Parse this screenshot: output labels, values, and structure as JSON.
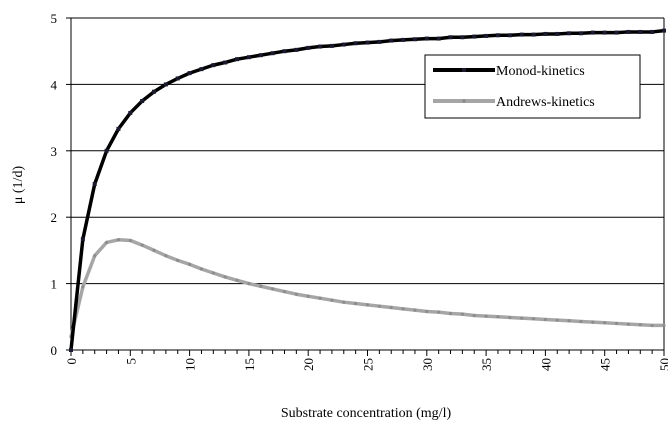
{
  "chart_data": {
    "type": "line",
    "title": "",
    "xlabel": "Substrate concentration  (mg/l)",
    "ylabel": "μ (1/d)",
    "xlim": [
      0,
      50
    ],
    "ylim": [
      0,
      5
    ],
    "x_ticks": [
      "0",
      "5",
      "10",
      "15",
      "20",
      "25",
      "30",
      "35",
      "40",
      "45",
      "50"
    ],
    "y_ticks": [
      "0",
      "1",
      "2",
      "3",
      "4",
      "5"
    ],
    "grid": "horizontal",
    "legend_position": "upper-right",
    "x": [
      0,
      1,
      2,
      3,
      4,
      5,
      6,
      7,
      8,
      9,
      10,
      11,
      12,
      13,
      14,
      15,
      16,
      17,
      18,
      19,
      20,
      21,
      22,
      23,
      24,
      25,
      26,
      27,
      28,
      29,
      30,
      31,
      32,
      33,
      34,
      35,
      36,
      37,
      38,
      39,
      40,
      41,
      42,
      43,
      44,
      45,
      46,
      47,
      48,
      49,
      50
    ],
    "series": [
      {
        "name": "Monod-kinetics",
        "color": "#000000",
        "values": [
          0.0,
          1.67,
          2.5,
          3.0,
          3.33,
          3.57,
          3.75,
          3.89,
          4.0,
          4.09,
          4.17,
          4.23,
          4.29,
          4.33,
          4.38,
          4.41,
          4.44,
          4.47,
          4.5,
          4.52,
          4.55,
          4.57,
          4.58,
          4.6,
          4.62,
          4.63,
          4.64,
          4.66,
          4.67,
          4.68,
          4.69,
          4.69,
          4.71,
          4.71,
          4.72,
          4.73,
          4.74,
          4.74,
          4.75,
          4.75,
          4.76,
          4.76,
          4.77,
          4.77,
          4.78,
          4.78,
          4.78,
          4.79,
          4.79,
          4.79,
          4.81
        ]
      },
      {
        "name": "Andrews-kinetics",
        "color": "#a6a6a6",
        "values": [
          0.2,
          0.95,
          1.42,
          1.62,
          1.66,
          1.65,
          1.58,
          1.5,
          1.42,
          1.35,
          1.29,
          1.22,
          1.16,
          1.1,
          1.05,
          1.0,
          0.96,
          0.92,
          0.88,
          0.84,
          0.81,
          0.78,
          0.75,
          0.72,
          0.7,
          0.68,
          0.66,
          0.64,
          0.62,
          0.6,
          0.58,
          0.57,
          0.55,
          0.54,
          0.52,
          0.51,
          0.5,
          0.49,
          0.48,
          0.47,
          0.46,
          0.45,
          0.44,
          0.43,
          0.42,
          0.41,
          0.4,
          0.39,
          0.38,
          0.37,
          0.37
        ]
      }
    ]
  }
}
